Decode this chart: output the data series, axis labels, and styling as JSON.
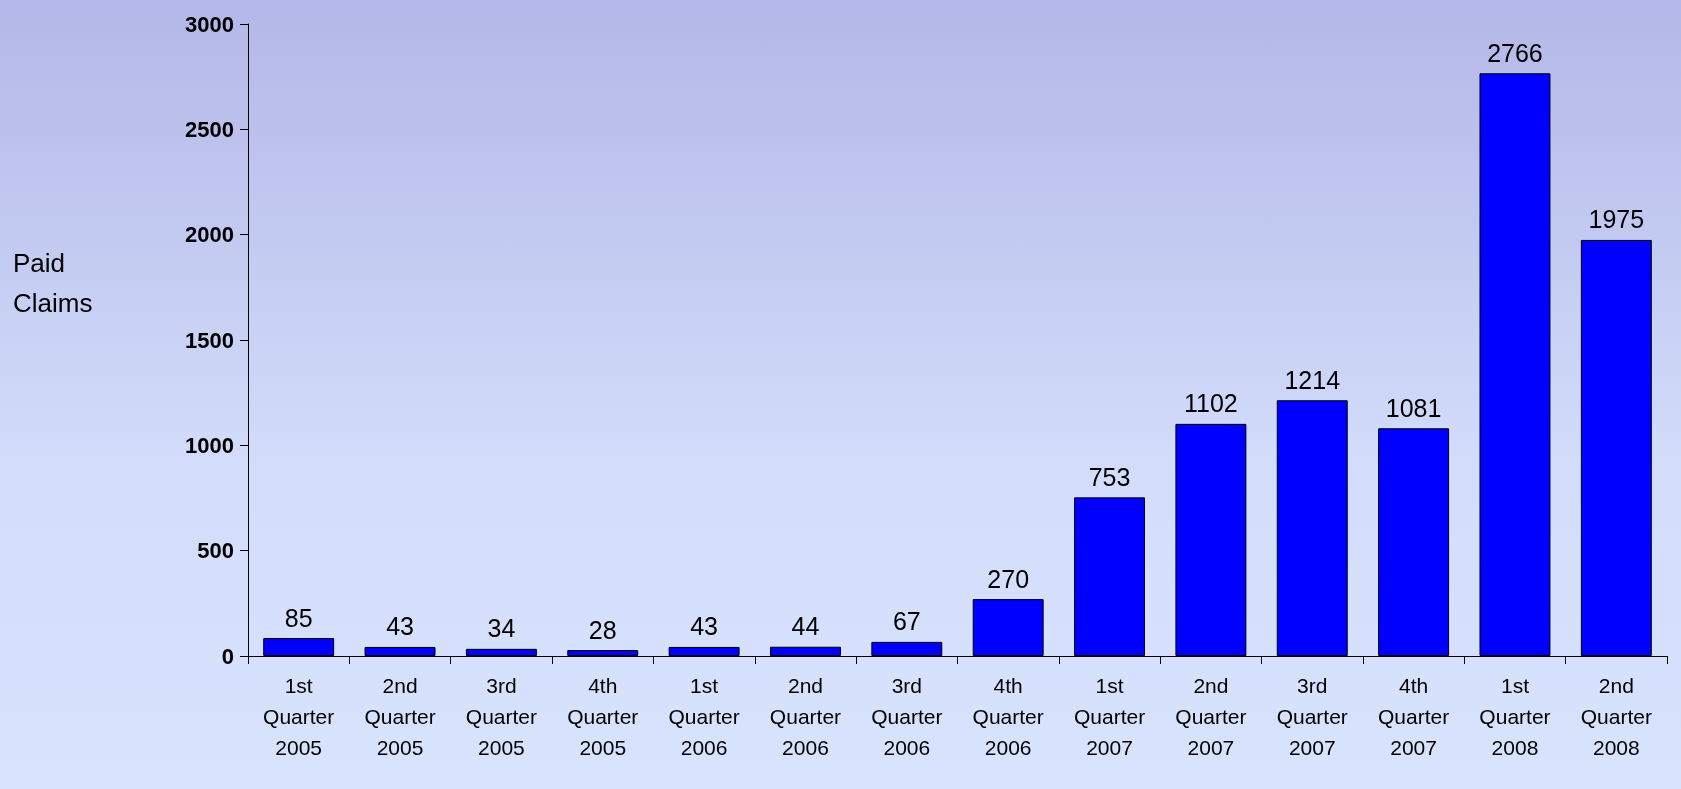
{
  "chart_data": {
    "type": "bar",
    "ylabel": "Paid Claims",
    "categories": [
      "1st\nQuarter\n2005",
      "2nd\nQuarter\n2005",
      "3rd\nQuarter\n2005",
      "4th\nQuarter\n2005",
      "1st\nQuarter\n2006",
      "2nd\nQuarter\n2006",
      "3rd\nQuarter\n2006",
      "4th\nQuarter\n2006",
      "1st\nQuarter\n2007",
      "2nd\nQuarter\n2007",
      "3rd\nQuarter\n2007",
      "4th\nQuarter\n2007",
      "1st\nQuarter\n2008",
      "2nd\nQuarter\n2008"
    ],
    "values": [
      85,
      43,
      34,
      28,
      43,
      44,
      67,
      270,
      753,
      1102,
      1214,
      1081,
      2766,
      1975
    ],
    "color": "#0000ff",
    "ylim": [
      0,
      3000
    ],
    "yticks": [
      0,
      500,
      1000,
      1500,
      2000,
      2500,
      3000
    ],
    "grid": false,
    "data_labels": true
  }
}
